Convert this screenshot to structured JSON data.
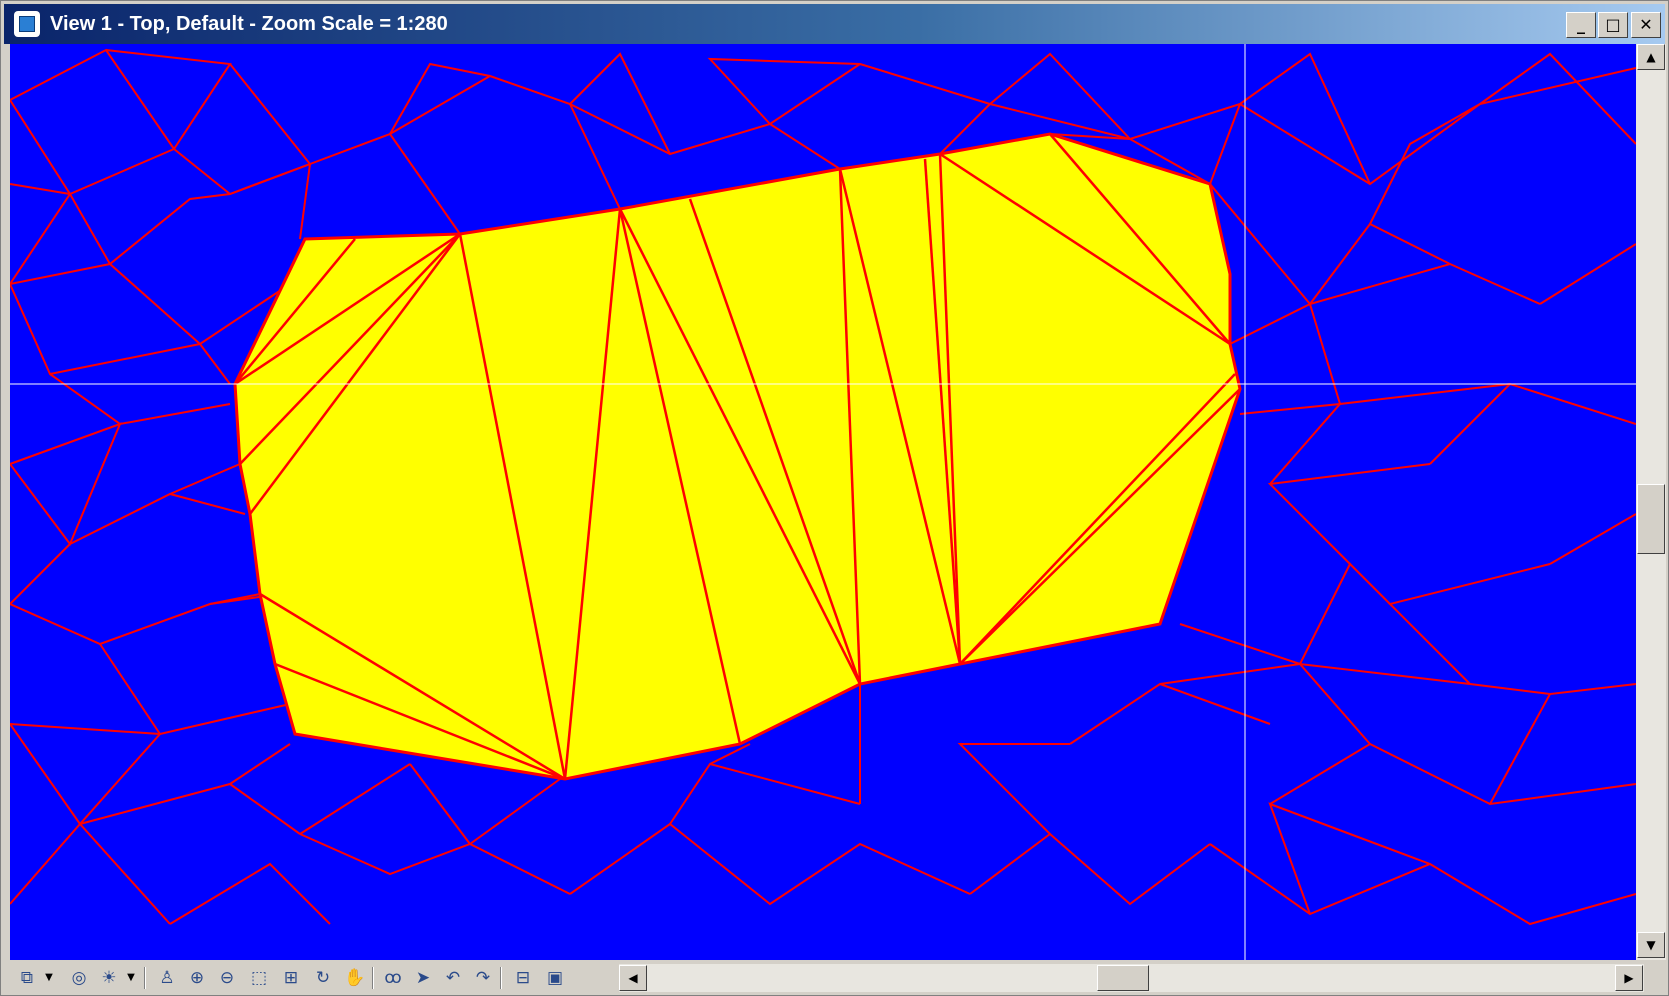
{
  "window": {
    "title": "View 1 - Top, Default - Zoom Scale = 1:280",
    "controls": {
      "minimize": "_",
      "maximize": "□",
      "close": "✕"
    }
  },
  "colors": {
    "background": "#0000ff",
    "mesh_edges": "#ff0000",
    "region_fill": "#ffff00",
    "crosshair": "#ffffff",
    "title_bar_start": "#0a246a",
    "title_bar_end": "#a6caf0"
  },
  "toolbar": {
    "tools": [
      {
        "name": "view-attributes-icon",
        "glyph": "⧉"
      },
      {
        "name": "dropdown-icon",
        "glyph": "▼"
      },
      {
        "name": "display-style-icon",
        "glyph": "◎"
      },
      {
        "name": "lighting-icon",
        "glyph": "☀"
      },
      {
        "name": "dropdown-icon",
        "glyph": "▼"
      },
      {
        "name": "update-view-icon",
        "glyph": "♙"
      },
      {
        "name": "zoom-in-icon",
        "glyph": "⊕"
      },
      {
        "name": "zoom-out-icon",
        "glyph": "⊖"
      },
      {
        "name": "window-area-icon",
        "glyph": "⬚"
      },
      {
        "name": "fit-view-icon",
        "glyph": "⊞"
      },
      {
        "name": "rotate-view-icon",
        "glyph": "↻"
      },
      {
        "name": "pan-view-icon",
        "glyph": "✋"
      },
      {
        "name": "walk-view-icon",
        "glyph": "ꝏ"
      },
      {
        "name": "select-cursor-icon",
        "glyph": "➤"
      },
      {
        "name": "previous-view-icon",
        "glyph": "↶"
      },
      {
        "name": "next-view-icon",
        "glyph": "↷"
      },
      {
        "name": "copy-view-icon",
        "glyph": "⊟"
      },
      {
        "name": "camera-icon",
        "glyph": "▣"
      }
    ]
  },
  "scrollbars": {
    "vertical": {
      "up": "▲",
      "down": "▼",
      "position": 0.5
    },
    "horizontal": {
      "left": "◀",
      "right": "▶",
      "position": 0.48
    }
  }
}
